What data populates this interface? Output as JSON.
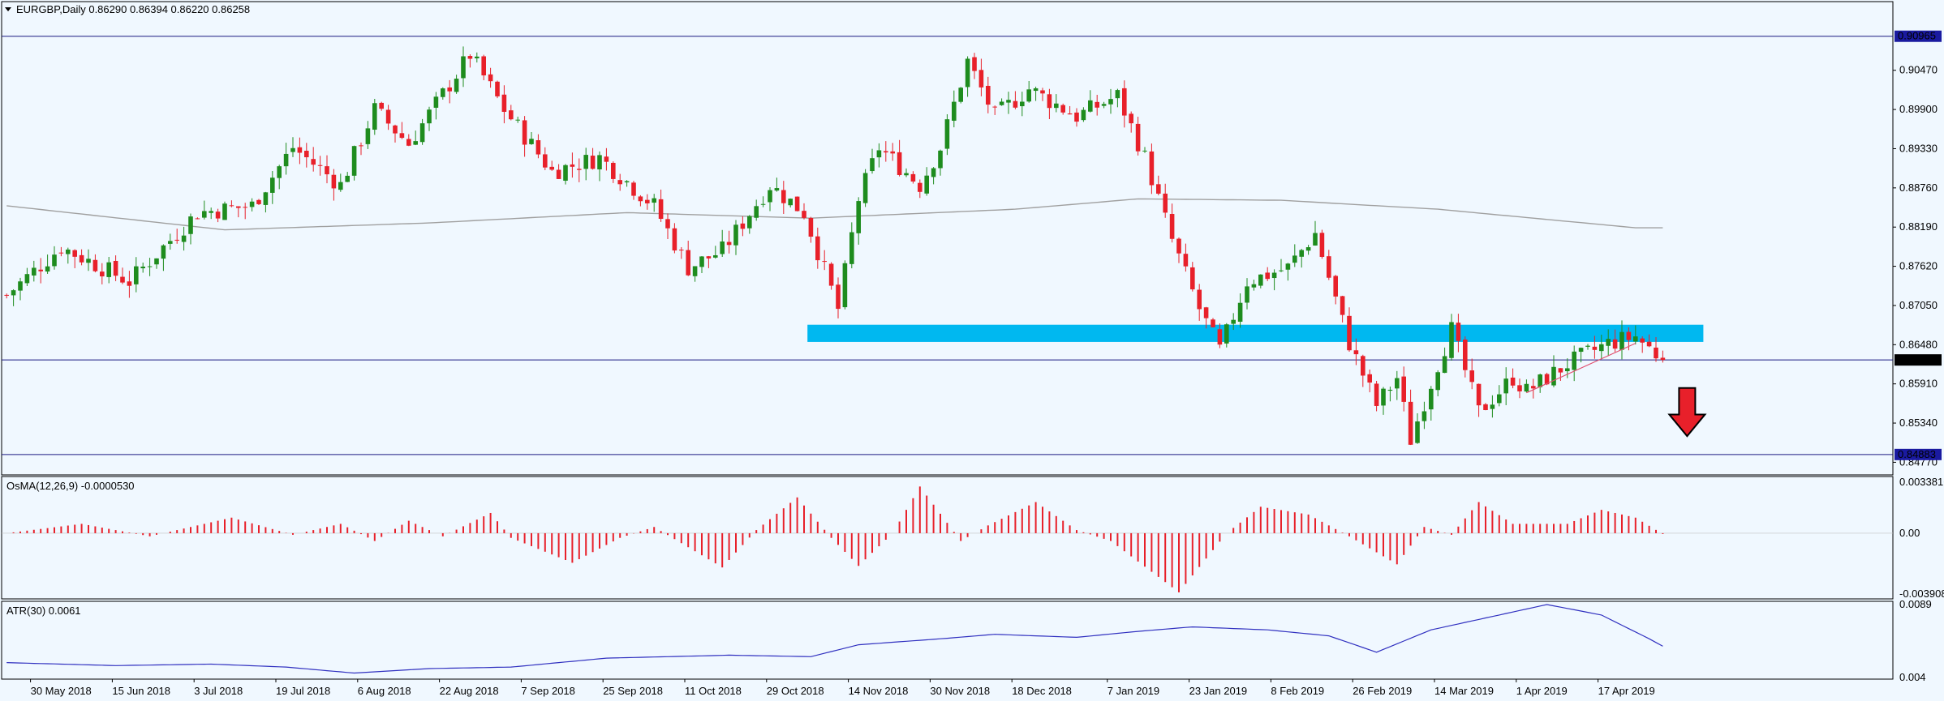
{
  "header": {
    "symbol_line": "EURGBP,Daily  0.86290 0.86394 0.86220 0.86258"
  },
  "colors": {
    "background": "#f0f8ff",
    "bull": "#1e8c1e",
    "bear": "#e8202a",
    "ma": "#a0a0a0",
    "zone": "#00b8f0",
    "line": "#1a1a80",
    "atr": "#3030c0",
    "osma": "#e8202a",
    "arrow": "#e8202a"
  },
  "chart_data": [
    {
      "type": "candlestick",
      "panel": "price",
      "title": "EURGBP,Daily",
      "ohlc_readout": {
        "open": 0.8629,
        "high": 0.86394,
        "low": 0.8622,
        "close": 0.86258
      },
      "y_axis_ticks": [
        "0.90470",
        "0.89900",
        "0.89330",
        "0.88760",
        "0.88190",
        "0.87620",
        "0.87050",
        "0.86480",
        "0.85910",
        "0.85340",
        "0.84770"
      ],
      "ylim": [
        0.8461,
        0.9128
      ],
      "price_labels": [
        {
          "text": "0.90965",
          "value": 0.90965,
          "style": "line"
        },
        {
          "text": "0.86258",
          "value": 0.86258,
          "style": "current"
        },
        {
          "text": "0.84883",
          "value": 0.84883,
          "style": "line"
        }
      ],
      "horizontal_lines": [
        0.90965,
        0.86258,
        0.84883
      ],
      "support_zone": {
        "from_date": "2018-11-06",
        "to_date": "2019-04-30",
        "high": 0.8677,
        "low": 0.8652
      },
      "arrow": {
        "date": "2019-04-30",
        "direction": "down",
        "from": 0.8585,
        "to": 0.8515
      },
      "trendline": {
        "from": [
          "2019-04-02",
          0.8578
        ],
        "to": [
          "2019-04-24",
          0.865
        ]
      },
      "series_checkpoints_ma": [
        [
          "2018-05-24",
          0.885
        ],
        [
          "2018-07-09",
          0.8815
        ],
        [
          "2018-08-20",
          0.8825
        ],
        [
          "2018-09-28",
          0.884
        ],
        [
          "2018-11-06",
          0.8832
        ],
        [
          "2018-12-18",
          0.8845
        ],
        [
          "2019-01-11",
          0.886
        ],
        [
          "2019-02-11",
          0.8858
        ],
        [
          "2019-03-14",
          0.8845
        ],
        [
          "2019-04-24",
          0.8818
        ]
      ],
      "close_checkpoints": [
        [
          "2018-05-24",
          0.872
        ],
        [
          "2018-06-05",
          0.879
        ],
        [
          "2018-06-19",
          0.874
        ],
        [
          "2018-07-03",
          0.884
        ],
        [
          "2018-07-13",
          0.885
        ],
        [
          "2018-07-23",
          0.8935
        ],
        [
          "2018-08-01",
          0.888
        ],
        [
          "2018-08-08",
          0.899
        ],
        [
          "2018-08-15",
          0.894
        ],
        [
          "2018-08-28",
          0.907
        ],
        [
          "2018-09-04",
          0.899
        ],
        [
          "2018-09-13",
          0.89
        ],
        [
          "2018-09-24",
          0.892
        ],
        [
          "2018-10-04",
          0.885
        ],
        [
          "2018-10-11",
          0.876
        ],
        [
          "2018-10-18",
          0.8785
        ],
        [
          "2018-10-29",
          0.888
        ],
        [
          "2018-11-05",
          0.884
        ],
        [
          "2018-11-12",
          0.87
        ],
        [
          "2018-11-15",
          0.886
        ],
        [
          "2018-11-20",
          0.8935
        ],
        [
          "2018-11-28",
          0.888
        ],
        [
          "2018-12-03",
          0.8935
        ],
        [
          "2018-12-07",
          0.906
        ],
        [
          "2018-12-13",
          0.898
        ],
        [
          "2018-12-20",
          0.902
        ],
        [
          "2018-12-31",
          0.898
        ],
        [
          "2019-01-08",
          0.901
        ],
        [
          "2019-01-14",
          0.892
        ],
        [
          "2019-01-18",
          0.88
        ],
        [
          "2019-01-24",
          0.87
        ],
        [
          "2019-01-29",
          0.864
        ],
        [
          "2019-02-04",
          0.874
        ],
        [
          "2019-02-12",
          0.876
        ],
        [
          "2019-02-18",
          0.881
        ],
        [
          "2019-02-25",
          0.865
        ],
        [
          "2019-03-01",
          0.856
        ],
        [
          "2019-03-06",
          0.86
        ],
        [
          "2019-03-08",
          0.851
        ],
        [
          "2019-03-14",
          0.862
        ],
        [
          "2019-03-18",
          0.867
        ],
        [
          "2019-03-22",
          0.855
        ],
        [
          "2019-03-29",
          0.86
        ],
        [
          "2019-04-02",
          0.858
        ],
        [
          "2019-04-10",
          0.862
        ],
        [
          "2019-04-18",
          0.865
        ],
        [
          "2019-04-24",
          0.866
        ],
        [
          "2019-04-30",
          0.8626
        ]
      ]
    },
    {
      "type": "histogram",
      "panel": "osma",
      "title": "OsMA(12,26,9) -0.0000530",
      "y_axis_ticks": [
        "0.0033816",
        "0.00",
        "-0.0039089"
      ],
      "ylim": [
        -0.0039089,
        0.0033816
      ],
      "checkpoints": [
        [
          "2018-05-24",
          0.0
        ],
        [
          "2018-06-08",
          0.0006
        ],
        [
          "2018-06-22",
          -0.0002
        ],
        [
          "2018-07-10",
          0.001
        ],
        [
          "2018-07-23",
          -0.0001
        ],
        [
          "2018-08-01",
          0.0006
        ],
        [
          "2018-08-08",
          -0.0005
        ],
        [
          "2018-08-15",
          0.0008
        ],
        [
          "2018-08-22",
          -0.0002
        ],
        [
          "2018-08-31",
          0.0013
        ],
        [
          "2018-09-05",
          -0.0003
        ],
        [
          "2018-09-18",
          -0.0019
        ],
        [
          "2018-09-27",
          -0.0003
        ],
        [
          "2018-10-04",
          0.0004
        ],
        [
          "2018-10-18",
          -0.0022
        ],
        [
          "2018-10-25",
          0.0002
        ],
        [
          "2018-11-02",
          0.0023
        ],
        [
          "2018-11-09",
          -0.0003
        ],
        [
          "2018-11-15",
          -0.0021
        ],
        [
          "2018-11-22",
          0.0
        ],
        [
          "2018-11-28",
          0.003
        ],
        [
          "2018-12-06",
          -0.0005
        ],
        [
          "2018-12-12",
          0.0005
        ],
        [
          "2018-12-21",
          0.002
        ],
        [
          "2018-12-31",
          0.0002
        ],
        [
          "2019-01-07",
          -0.0005
        ],
        [
          "2019-01-21",
          -0.0038
        ],
        [
          "2019-01-30",
          0.0
        ],
        [
          "2019-02-06",
          0.0017
        ],
        [
          "2019-02-15",
          0.0012
        ],
        [
          "2019-02-25",
          -0.0002
        ],
        [
          "2019-03-06",
          -0.002
        ],
        [
          "2019-03-12",
          0.0004
        ],
        [
          "2019-03-18",
          -0.0001
        ],
        [
          "2019-03-22",
          0.002
        ],
        [
          "2019-03-29",
          0.0006
        ],
        [
          "2019-04-10",
          0.0006
        ],
        [
          "2019-04-17",
          0.0015
        ],
        [
          "2019-04-24",
          0.001
        ],
        [
          "2019-04-30",
          -5e-05
        ]
      ]
    },
    {
      "type": "line",
      "panel": "atr",
      "title": "ATR(30) 0.0061",
      "y_axis_ticks": [
        "0.0089",
        "0.004"
      ],
      "ylim": [
        0.004,
        0.0089
      ],
      "checkpoints": [
        [
          "2018-05-24",
          0.005
        ],
        [
          "2018-06-15",
          0.0048
        ],
        [
          "2018-07-05",
          0.0049
        ],
        [
          "2018-07-20",
          0.0047
        ],
        [
          "2018-08-03",
          0.0043
        ],
        [
          "2018-08-20",
          0.0046
        ],
        [
          "2018-09-05",
          0.0047
        ],
        [
          "2018-09-25",
          0.0053
        ],
        [
          "2018-10-19",
          0.0055
        ],
        [
          "2018-11-06",
          0.0054
        ],
        [
          "2018-11-15",
          0.0062
        ],
        [
          "2018-12-03",
          0.0066
        ],
        [
          "2018-12-13",
          0.0069
        ],
        [
          "2018-12-31",
          0.0067
        ],
        [
          "2019-01-11",
          0.0071
        ],
        [
          "2019-01-23",
          0.0074
        ],
        [
          "2019-02-07",
          0.0072
        ],
        [
          "2019-02-20",
          0.0068
        ],
        [
          "2019-03-01",
          0.0057
        ],
        [
          "2019-03-13",
          0.0072
        ],
        [
          "2019-03-25",
          0.008
        ],
        [
          "2019-04-05",
          0.0089
        ],
        [
          "2019-04-17",
          0.0082
        ],
        [
          "2019-04-26",
          0.0066
        ],
        [
          "2019-04-30",
          0.0061
        ]
      ]
    }
  ],
  "x_axis": {
    "labels": [
      {
        "text": "30 May 2018",
        "date": "2018-05-30"
      },
      {
        "text": "15 Jun 2018",
        "date": "2018-06-15"
      },
      {
        "text": "3 Jul 2018",
        "date": "2018-07-03"
      },
      {
        "text": "19 Jul 2018",
        "date": "2018-07-19"
      },
      {
        "text": "6 Aug 2018",
        "date": "2018-08-06"
      },
      {
        "text": "22 Aug 2018",
        "date": "2018-08-22"
      },
      {
        "text": "7 Sep 2018",
        "date": "2018-09-07"
      },
      {
        "text": "25 Sep 2018",
        "date": "2018-09-25"
      },
      {
        "text": "11 Oct 2018",
        "date": "2018-10-11"
      },
      {
        "text": "29 Oct 2018",
        "date": "2018-10-29"
      },
      {
        "text": "14 Nov 2018",
        "date": "2018-11-14"
      },
      {
        "text": "30 Nov 2018",
        "date": "2018-11-30"
      },
      {
        "text": "18 Dec 2018",
        "date": "2018-12-18"
      },
      {
        "text": "7 Jan 2019",
        "date": "2019-01-07"
      },
      {
        "text": "23 Jan 2019",
        "date": "2019-01-23"
      },
      {
        "text": "8 Feb 2019",
        "date": "2019-02-08"
      },
      {
        "text": "26 Feb 2019",
        "date": "2019-02-26"
      },
      {
        "text": "14 Mar 2019",
        "date": "2019-03-14"
      },
      {
        "text": "1 Apr 2019",
        "date": "2019-04-01"
      },
      {
        "text": "17 Apr 2019",
        "date": "2019-04-17"
      }
    ]
  }
}
